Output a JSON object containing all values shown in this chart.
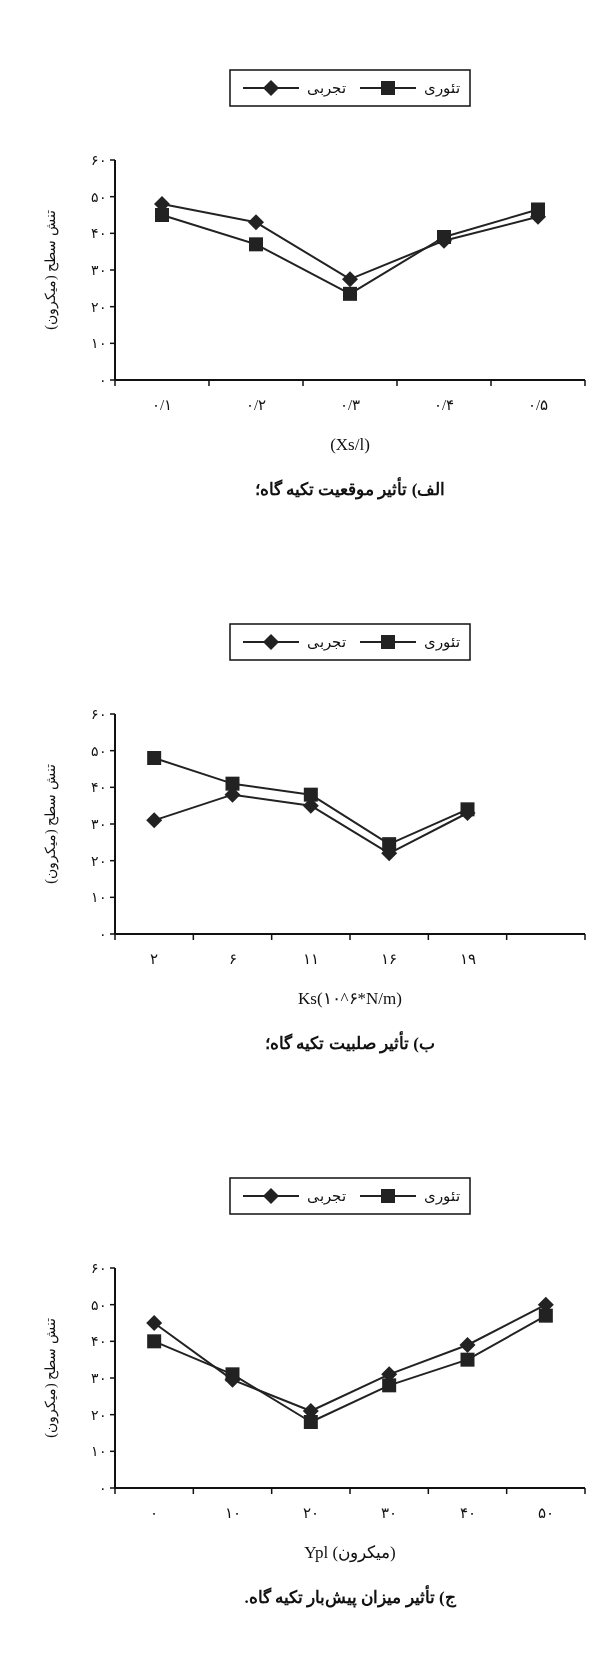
{
  "chart_data": [
    {
      "type": "line",
      "title": "الف) تأثیر موقعیت تکیه گاه؛",
      "xlabel": "(Xs/l)",
      "ylabel": "تنش سطح (میکرون)",
      "categories": [
        "۰/۱",
        "۰/۲",
        "۰/۳",
        "۰/۴",
        "۰/۵"
      ],
      "ylim": [
        0,
        60
      ],
      "yticks": [
        {
          "value": 0,
          "label": "۰"
        },
        {
          "value": 10,
          "label": "۱۰"
        },
        {
          "value": 20,
          "label": "۲۰"
        },
        {
          "value": 30,
          "label": "۳۰"
        },
        {
          "value": 40,
          "label": "۴۰"
        },
        {
          "value": 50,
          "label": "۵۰"
        },
        {
          "value": 60,
          "label": "۶۰"
        }
      ],
      "legend": "top",
      "series": [
        {
          "name": "تئوری",
          "color": "#222222",
          "marker": "square",
          "values": [
            45,
            37,
            23.5,
            39,
            46.5
          ]
        },
        {
          "name": "تجربی",
          "color": "#222222",
          "marker": "diamond",
          "values": [
            48,
            43,
            27.5,
            38,
            44.5
          ]
        }
      ]
    },
    {
      "type": "line",
      "title": "ب) تأثیر صلبیت تکیه گاه؛",
      "xlabel": "Ks(۱۰^۶*N/m)",
      "ylabel": "تنش سطح (میکرون)",
      "categories": [
        "۲",
        "۶",
        "۱۱",
        "۱۶",
        "۱۹",
        null
      ],
      "ylim": [
        0,
        60
      ],
      "yticks": [
        {
          "value": 0,
          "label": "۰"
        },
        {
          "value": 10,
          "label": "۱۰"
        },
        {
          "value": 20,
          "label": "۲۰"
        },
        {
          "value": 30,
          "label": "۳۰"
        },
        {
          "value": 40,
          "label": "۴۰"
        },
        {
          "value": 50,
          "label": "۵۰"
        },
        {
          "value": 60,
          "label": "۶۰"
        }
      ],
      "legend": "top",
      "series": [
        {
          "name": "تئوری",
          "color": "#222222",
          "marker": "square",
          "values": [
            48,
            41,
            38,
            24.5,
            34,
            null
          ]
        },
        {
          "name": "تجربی",
          "color": "#222222",
          "marker": "diamond",
          "values": [
            31,
            38,
            35,
            22,
            33,
            null
          ]
        }
      ]
    },
    {
      "type": "line",
      "title": "ج) تأثیر میزان پیش‌بار تکیه گاه.",
      "xlabel": "Ypl (میکرون)",
      "ylabel": "تنش سطح (میکرون)",
      "categories": [
        "۰",
        "۱۰",
        "۲۰",
        "۳۰",
        "۴۰",
        "۵۰"
      ],
      "ylim": [
        0,
        60
      ],
      "yticks": [
        {
          "value": 0,
          "label": "۰"
        },
        {
          "value": 10,
          "label": "۱۰"
        },
        {
          "value": 20,
          "label": "۲۰"
        },
        {
          "value": 30,
          "label": "۳۰"
        },
        {
          "value": 40,
          "label": "۴۰"
        },
        {
          "value": 50,
          "label": "۵۰"
        },
        {
          "value": 60,
          "label": "۶۰"
        }
      ],
      "legend": "top",
      "series": [
        {
          "name": "تئوری",
          "color": "#222222",
          "marker": "square",
          "values": [
            40,
            31,
            18,
            28,
            35,
            47
          ]
        },
        {
          "name": "تجربی",
          "color": "#222222",
          "marker": "diamond",
          "values": [
            45,
            29.5,
            21,
            31,
            39,
            50
          ]
        }
      ]
    }
  ]
}
